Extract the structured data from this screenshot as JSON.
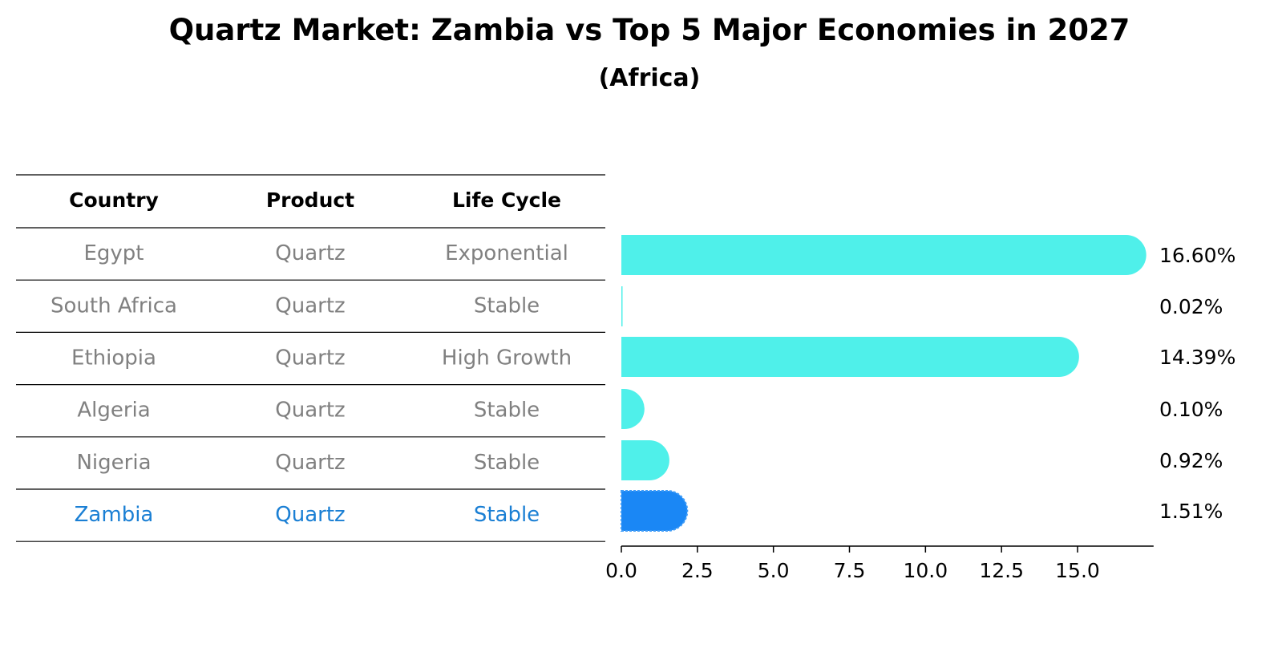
{
  "title": "Quartz Market: Zambia vs Top 5 Major Economies in 2027",
  "subtitle": "(Africa)",
  "table": {
    "headers": [
      "Country",
      "Product",
      "Life Cycle"
    ],
    "rows": [
      {
        "country": "Egypt",
        "product": "Quartz",
        "life_cycle": "Exponential",
        "highlight": false
      },
      {
        "country": "South Africa",
        "product": "Quartz",
        "life_cycle": "Stable",
        "highlight": false
      },
      {
        "country": "Ethiopia",
        "product": "Quartz",
        "life_cycle": "High Growth",
        "highlight": false
      },
      {
        "country": "Algeria",
        "product": "Quartz",
        "life_cycle": "Stable",
        "highlight": false
      },
      {
        "country": "Nigeria",
        "product": "Quartz",
        "life_cycle": "Stable",
        "highlight": false
      },
      {
        "country": "Zambia",
        "product": "Quartz",
        "life_cycle": "Stable",
        "highlight": true
      }
    ]
  },
  "colors": {
    "bar": "#4ff0ea",
    "highlight_bar": "#1a87f5",
    "text_normal": "#808080",
    "text_highlight": "#1a7fd4",
    "axis": "#000000"
  },
  "chart_data": {
    "type": "bar",
    "orientation": "horizontal",
    "categories": [
      "Egypt",
      "South Africa",
      "Ethiopia",
      "Algeria",
      "Nigeria",
      "Zambia"
    ],
    "values": [
      16.6,
      0.02,
      14.39,
      0.1,
      0.92,
      1.51
    ],
    "value_labels": [
      "16.60%",
      "0.02%",
      "14.39%",
      "0.10%",
      "0.92%",
      "1.51%"
    ],
    "highlight": "Zambia",
    "xlim": [
      0,
      17.5
    ],
    "xticks": [
      0.0,
      2.5,
      5.0,
      7.5,
      10.0,
      12.5,
      15.0
    ],
    "xtick_labels": [
      "0.0",
      "2.5",
      "5.0",
      "7.5",
      "10.0",
      "12.5",
      "15.0"
    ],
    "xlabel": "",
    "ylabel": ""
  }
}
